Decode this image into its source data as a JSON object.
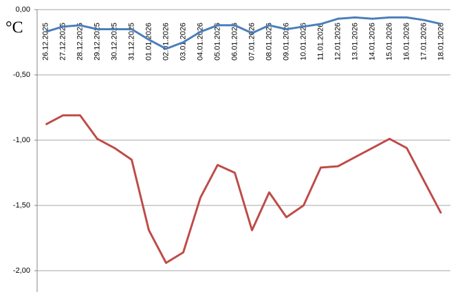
{
  "chart_data": {
    "type": "line",
    "y_label": "°C",
    "categories": [
      "26.12.2025",
      "27.12.2025",
      "28.12.2025",
      "29.12.2025",
      "30.12.2025",
      "31.12.2025",
      "01.01.2026",
      "02.01.2026",
      "03.01.2026",
      "04.01.2026",
      "05.01.2026",
      "06.01.2026",
      "07.01.2026",
      "08.01.2026",
      "09.01.2026",
      "10.01.2026",
      "11.01.2026",
      "12.01.2026",
      "13.01.2026",
      "14.01.2026",
      "15.01.2026",
      "16.01.2026",
      "17.01.2026",
      "18.01.2026"
    ],
    "series": [
      {
        "color": "#4a7ebb",
        "values": [
          -0.17,
          -0.13,
          -0.12,
          -0.15,
          -0.15,
          -0.15,
          -0.23,
          -0.3,
          -0.25,
          -0.17,
          -0.12,
          -0.12,
          -0.18,
          -0.12,
          -0.15,
          -0.13,
          -0.11,
          -0.07,
          -0.06,
          -0.07,
          -0.06,
          -0.06,
          -0.08,
          -0.11
        ]
      },
      {
        "color": "#be4b48",
        "values": [
          -0.88,
          -0.81,
          -0.81,
          -0.99,
          -1.06,
          -1.15,
          -1.69,
          -1.94,
          -1.86,
          -1.44,
          -1.19,
          -1.25,
          -1.69,
          -1.4,
          -1.59,
          -1.5,
          -1.21,
          -1.2,
          -1.13,
          -1.06,
          -0.99,
          -1.06,
          -1.31,
          -1.56
        ]
      }
    ],
    "ylim": [
      -2.15,
      0
    ],
    "yticks": [
      {
        "value": 0,
        "label": "0,00"
      },
      {
        "value": -0.5,
        "label": "-0,50"
      },
      {
        "value": -1,
        "label": "-1,00"
      },
      {
        "value": -1.5,
        "label": "-1,50"
      },
      {
        "value": -2,
        "label": "-2,00"
      }
    ],
    "grid": true
  }
}
